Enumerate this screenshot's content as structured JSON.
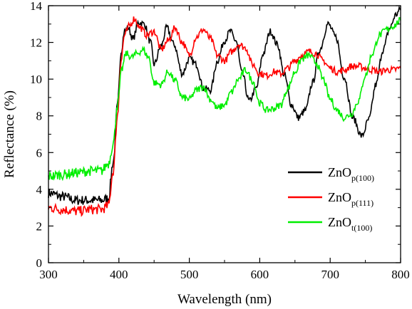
{
  "chart_data": {
    "type": "line",
    "title": "",
    "xlabel": "Wavelength (nm)",
    "ylabel": "Reflectance (%)",
    "xlim": [
      300,
      800
    ],
    "ylim": [
      0,
      14
    ],
    "xticks": [
      300,
      400,
      500,
      600,
      700,
      800
    ],
    "yticks": [
      0,
      2,
      4,
      6,
      8,
      10,
      12,
      14
    ],
    "grid": false,
    "legend_position": "lower-right",
    "series": [
      {
        "name": "ZnO",
        "name_sub": "p(100)",
        "color": "#000000",
        "x": [
          300,
          320,
          340,
          360,
          375,
          385,
          392,
          398,
          403,
          408,
          413,
          420,
          428,
          436,
          445,
          450,
          460,
          468,
          478,
          490,
          500,
          510,
          520,
          530,
          540,
          550,
          558,
          566,
          575,
          585,
          595,
          605,
          615,
          625,
          635,
          645,
          655,
          665,
          675,
          685,
          697,
          708,
          720,
          732,
          745,
          755,
          765,
          775,
          785,
          793,
          800
        ],
        "y": [
          3.8,
          3.6,
          3.4,
          3.4,
          3.4,
          3.5,
          5.5,
          8.5,
          11.5,
          12.6,
          12.8,
          12.2,
          13.1,
          13.0,
          12.0,
          10.8,
          11.8,
          12.8,
          11.9,
          10.3,
          11.1,
          10.8,
          9.5,
          9.4,
          11.0,
          12.1,
          12.6,
          12.1,
          10.3,
          8.8,
          9.5,
          11.4,
          12.6,
          11.9,
          10.2,
          8.6,
          7.9,
          8.3,
          9.8,
          11.6,
          13.0,
          12.3,
          10.1,
          7.9,
          6.9,
          7.8,
          9.7,
          11.6,
          12.8,
          13.5,
          13.8
        ]
      },
      {
        "name": "ZnO",
        "name_sub": "p(111)",
        "color": "#ff0000",
        "x": [
          300,
          320,
          340,
          360,
          375,
          385,
          392,
          398,
          403,
          408,
          415,
          422,
          430,
          440,
          450,
          460,
          470,
          480,
          490,
          500,
          510,
          520,
          530,
          540,
          550,
          560,
          570,
          580,
          590,
          600,
          610,
          620,
          630,
          640,
          650,
          660,
          670,
          680,
          690,
          700,
          710,
          720,
          730,
          740,
          750,
          760,
          770,
          780,
          790,
          800
        ],
        "y": [
          3.0,
          2.9,
          2.8,
          2.9,
          2.9,
          3.1,
          5.0,
          8.0,
          11.0,
          12.4,
          12.9,
          13.3,
          12.8,
          12.4,
          12.6,
          11.6,
          12.1,
          12.8,
          12.0,
          11.3,
          12.3,
          12.7,
          12.2,
          11.3,
          11.0,
          11.5,
          11.9,
          11.7,
          10.8,
          10.3,
          10.2,
          10.4,
          10.3,
          10.6,
          11.0,
          11.3,
          11.5,
          11.4,
          11.0,
          10.6,
          10.4,
          10.5,
          10.7,
          10.7,
          10.6,
          10.5,
          10.4,
          10.5,
          10.5,
          10.6
        ]
      },
      {
        "name": "ZnO",
        "name_sub": "t(100)",
        "color": "#00ee00",
        "x": [
          300,
          320,
          340,
          360,
          375,
          385,
          392,
          398,
          404,
          410,
          418,
          426,
          434,
          442,
          450,
          460,
          470,
          480,
          490,
          500,
          510,
          520,
          530,
          540,
          550,
          560,
          570,
          580,
          590,
          600,
          610,
          620,
          630,
          640,
          650,
          660,
          670,
          680,
          690,
          700,
          710,
          720,
          730,
          740,
          750,
          760,
          770,
          780,
          790,
          800
        ],
        "y": [
          4.7,
          4.8,
          4.9,
          5.0,
          5.0,
          5.4,
          6.5,
          8.6,
          10.5,
          11.4,
          11.2,
          11.4,
          11.6,
          11.2,
          9.8,
          9.7,
          10.4,
          9.9,
          9.0,
          8.9,
          9.4,
          9.6,
          8.9,
          8.4,
          8.6,
          9.3,
          10.0,
          10.5,
          9.9,
          8.7,
          8.3,
          8.4,
          8.6,
          9.5,
          10.4,
          11.1,
          11.3,
          10.9,
          10.0,
          8.9,
          8.3,
          7.9,
          8.1,
          8.8,
          10.2,
          11.4,
          12.4,
          12.7,
          12.9,
          13.2
        ]
      }
    ]
  }
}
